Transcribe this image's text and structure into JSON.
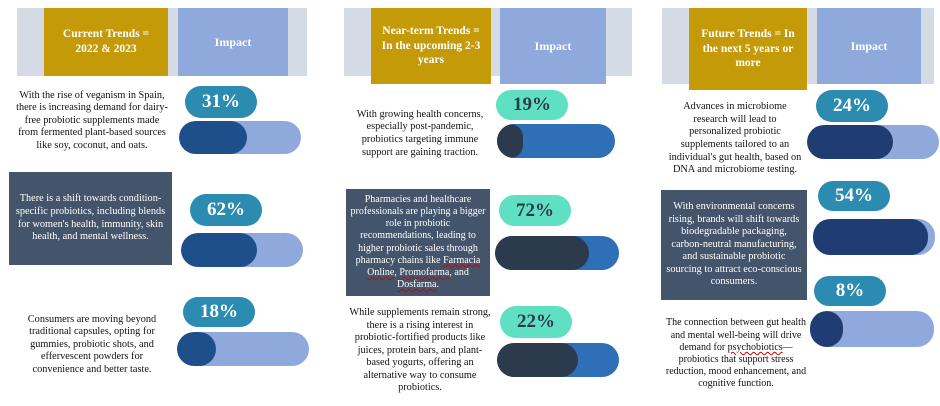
{
  "columns": [
    {
      "header": "Current Trends = 2022 & 2023",
      "impact_label": "Impact",
      "items": [
        {
          "text": "With the rise of veganism in Spain, there is increasing demand for dairy-free probiotic supplements made from fermented plant-based sources like soy, coconut, and oats.",
          "percent": "31%",
          "value": 0.31
        },
        {
          "text": "There is a shift towards condition-specific probiotics, including blends for women's health, immunity, skin health, and mental wellness.",
          "percent": "62%",
          "value": 0.62
        },
        {
          "text": "Consumers are moving beyond traditional capsules, opting for gummies, probiotic shots, and effervescent powders for convenience and better taste.",
          "percent": "18%",
          "value": 0.18
        }
      ]
    },
    {
      "header": "Near-term Trends = In the upcoming 2-3 years",
      "impact_label": "Impact",
      "items": [
        {
          "text": "With growing health concerns, especially post-pandemic, probiotics targeting immune support are gaining traction.",
          "percent": "19%",
          "value": 0.19
        },
        {
          "text_parts": [
            "Pharmacies and healthcare professionals are playing a bigger role in probiotic recommendations, leading to higher probiotic sales through pharmacy chains like ",
            "Farmacia Online",
            ", ",
            "Promofarma",
            ", and ",
            "Dosfarma",
            "."
          ],
          "percent": "72%",
          "value": 0.72
        },
        {
          "text": "While supplements remain strong, there is a rising interest in probiotic-fortified products like juices, protein bars, and plant-based yogurts, offering an alternative way to consume probiotics.",
          "percent": "22%",
          "value": 0.22
        }
      ]
    },
    {
      "header": "Future Trends = In the next 5 years or more",
      "impact_label": "Impact",
      "items": [
        {
          "text": "Advances in microbiome research will lead to personalized probiotic supplements tailored to an individual's gut health, based on DNA and microbiome testing.",
          "percent": "24%",
          "value": 0.24
        },
        {
          "text": "With environmental concerns rising, brands will shift towards biodegradable packaging, carbon-neutral manufacturing, and sustainable probiotic sourcing to attract eco-conscious consumers.",
          "percent": "54%",
          "value": 0.54
        },
        {
          "text_parts": [
            "The connection between gut health and mental well-being will drive demand for ",
            "psychobiotics",
            "—probiotics that support stress reduction, mood enhancement, and cognitive function."
          ],
          "percent": "8%",
          "value": 0.08
        }
      ]
    }
  ],
  "colors": {
    "header_gold": "#c49a08",
    "impact_blue": "#8fa9dc",
    "header_grey": "#d5dbe4",
    "dark_slate": "#44546a",
    "pill_teal": "#2c8bb0",
    "pill_mint": "#5fe0c3",
    "bar_light": "#8fa9dc",
    "bar_mid": "#2f6fb7",
    "bar_navy": "#1f3c73",
    "bar_dark": "#2b3a4d"
  }
}
